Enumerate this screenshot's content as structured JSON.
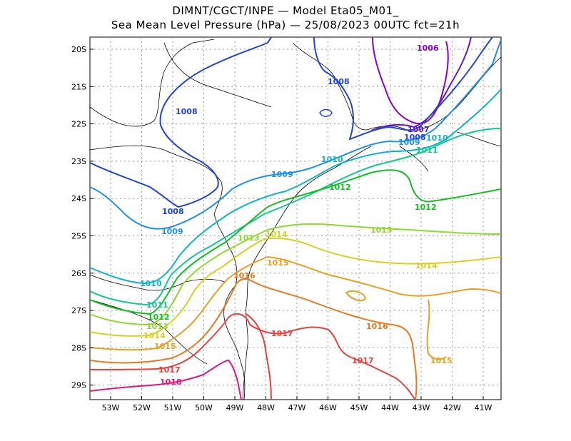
{
  "title_line1": "DIMNT/CGCT/INPE —  Model Eta05_M01_",
  "title_line2": "Sea Mean Level Pressure (hPa) — 25/08/2023 00UTC fct=21h",
  "lon_ticks": [
    "53W",
    "52W",
    "51W",
    "50W",
    "49W",
    "48W",
    "47W",
    "46W",
    "45W",
    "44W",
    "43W",
    "42W",
    "41W"
  ],
  "lat_ticks": [
    "20S",
    "21S",
    "22S",
    "23S",
    "24S",
    "25S",
    "26S",
    "27S",
    "28S",
    "29S"
  ],
  "isobars": [
    {
      "level": 1006,
      "color": "#8a00c8",
      "labels": [
        "1006"
      ]
    },
    {
      "level": 1007,
      "color": "#6a1ab8",
      "labels": [
        "1007"
      ]
    },
    {
      "level": 1008,
      "color": "#2044e0",
      "labels": [
        "1008",
        "1008",
        "1008",
        "1008"
      ]
    },
    {
      "level": 1009,
      "color": "#1e90f0",
      "labels": [
        "1009",
        "1009",
        "1009"
      ]
    },
    {
      "level": 1010,
      "color": "#10b4c8",
      "labels": [
        "1010",
        "1010",
        "1010"
      ]
    },
    {
      "level": 1011,
      "color": "#10c890",
      "labels": [
        "1011",
        "1011"
      ]
    },
    {
      "level": 1012,
      "color": "#10c020",
      "labels": [
        "1012",
        "1012",
        "1012"
      ]
    },
    {
      "level": 1013,
      "color": "#90d830",
      "labels": [
        "1013",
        "1013",
        "1013"
      ]
    },
    {
      "level": 1014,
      "color": "#d8d020",
      "labels": [
        "1014",
        "1014",
        "1014"
      ]
    },
    {
      "level": 1015,
      "color": "#e8a020",
      "labels": [
        "1015",
        "1015",
        "1015"
      ]
    },
    {
      "level": 1016,
      "color": "#e87820",
      "labels": [
        "1016",
        "1016"
      ]
    },
    {
      "level": 1017,
      "color": "#e84040",
      "labels": [
        "1017",
        "1017",
        "1017"
      ]
    },
    {
      "level": 1018,
      "color": "#e01880",
      "labels": [
        "1018"
      ]
    }
  ]
}
